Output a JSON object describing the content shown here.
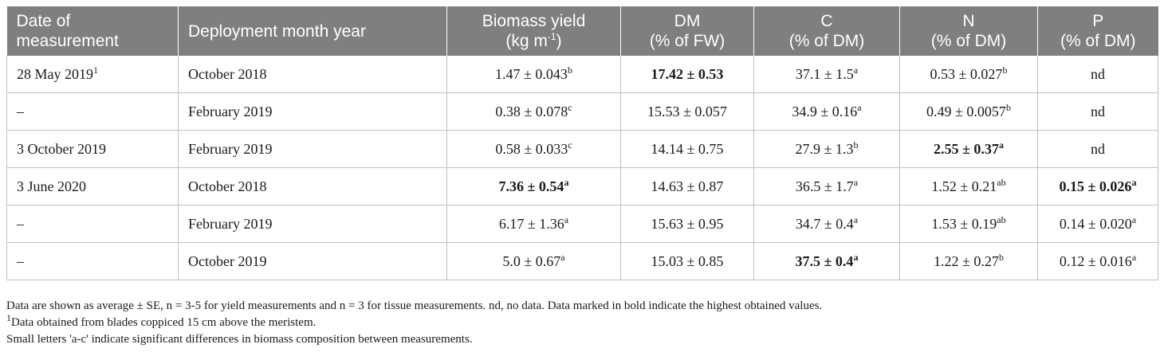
{
  "table": {
    "headers": [
      {
        "line1": "Date of",
        "line2": "measurement",
        "sup": "",
        "align": "left"
      },
      {
        "line1": "Deployment month year",
        "line2": "",
        "sup": "",
        "align": "left"
      },
      {
        "line1": "Biomass yield",
        "line2": "(kg m",
        "sup": "-1",
        "tail": ")",
        "align": "center"
      },
      {
        "line1": "DM",
        "line2": "(% of FW)",
        "sup": "",
        "align": "center"
      },
      {
        "line1": "C",
        "line2": "(% of DM)",
        "sup": "",
        "align": "center"
      },
      {
        "line1": "N",
        "line2": "(% of DM)",
        "sup": "",
        "align": "center"
      },
      {
        "line1": "P",
        "line2": "(% of DM)",
        "sup": "",
        "align": "center"
      }
    ],
    "rows": [
      {
        "date": "28 May 2019",
        "date_sup": "1",
        "deployment": "October 2018",
        "yield": "1.47 ± 0.043",
        "yield_sup": "b",
        "yield_bold": false,
        "dm": "17.42 ± 0.53",
        "dm_sup": "",
        "dm_bold": true,
        "c": "37.1 ± 1.5",
        "c_sup": "a",
        "c_bold": false,
        "n": "0.53 ± 0.027",
        "n_sup": "b",
        "n_bold": false,
        "p": "nd",
        "p_sup": "",
        "p_bold": false
      },
      {
        "date": "–",
        "date_sup": "",
        "deployment": "February 2019",
        "yield": "0.38 ± 0.078",
        "yield_sup": "c",
        "yield_bold": false,
        "dm": "15.53 ± 0.057",
        "dm_sup": "",
        "dm_bold": false,
        "c": "34.9 ± 0.16",
        "c_sup": "a",
        "c_bold": false,
        "n": "0.49 ± 0.0057",
        "n_sup": "b",
        "n_bold": false,
        "p": "nd",
        "p_sup": "",
        "p_bold": false
      },
      {
        "date": "3 October 2019",
        "date_sup": "",
        "deployment": "February 2019",
        "yield": "0.58 ± 0.033",
        "yield_sup": "c",
        "yield_bold": false,
        "dm": "14.14 ± 0.75",
        "dm_sup": "",
        "dm_bold": false,
        "c": "27.9 ± 1.3",
        "c_sup": "b",
        "c_bold": false,
        "n": "2.55 ± 0.37",
        "n_sup": "a",
        "n_bold": true,
        "p": "nd",
        "p_sup": "",
        "p_bold": false
      },
      {
        "date": "3 June 2020",
        "date_sup": "",
        "deployment": "October 2018",
        "yield": "7.36 ± 0.54",
        "yield_sup": "a",
        "yield_bold": true,
        "dm": "14.63 ± 0.87",
        "dm_sup": "",
        "dm_bold": false,
        "c": "36.5 ± 1.7",
        "c_sup": "a",
        "c_bold": false,
        "n": "1.52 ± 0.21",
        "n_sup": "ab",
        "n_bold": false,
        "p": "0.15 ± 0.026",
        "p_sup": "a",
        "p_bold": true
      },
      {
        "date": "–",
        "date_sup": "",
        "deployment": "February 2019",
        "yield": "6.17 ± 1.36",
        "yield_sup": "a",
        "yield_bold": false,
        "dm": "15.63 ± 0.95",
        "dm_sup": "",
        "dm_bold": false,
        "c": "34.7 ± 0.4",
        "c_sup": "a",
        "c_bold": false,
        "n": "1.53 ± 0.19",
        "n_sup": "ab",
        "n_bold": false,
        "p": "0.14 ± 0.020",
        "p_sup": "a",
        "p_bold": false
      },
      {
        "date": "–",
        "date_sup": "",
        "deployment": "October 2019",
        "yield": "5.0 ± 0.67",
        "yield_sup": "a",
        "yield_bold": false,
        "dm": "15.03 ± 0.85",
        "dm_sup": "",
        "dm_bold": false,
        "c": "37.5 ± 0.4",
        "c_sup": "a",
        "c_bold": true,
        "n": "1.22 ± 0.27",
        "n_sup": "b",
        "n_bold": false,
        "p": "0.12 ± 0.016",
        "p_sup": "a",
        "p_bold": false
      }
    ]
  },
  "notes": {
    "line1": "Data are shown as average ± SE, n = 3-5 for yield measurements and n = 3 for tissue measurements. nd, no data. Data marked in bold indicate the highest obtained values.",
    "line2_sup": "1",
    "line2": "Data obtained from blades coppiced 15 cm above the meristem.",
    "line3": "Small letters 'a-c' indicate significant differences in biomass composition between measurements."
  },
  "colors": {
    "header_bg": "#7f7f7f",
    "header_text": "#ffffff",
    "grid": "#bfbfbf",
    "text": "#1a1a1a"
  }
}
